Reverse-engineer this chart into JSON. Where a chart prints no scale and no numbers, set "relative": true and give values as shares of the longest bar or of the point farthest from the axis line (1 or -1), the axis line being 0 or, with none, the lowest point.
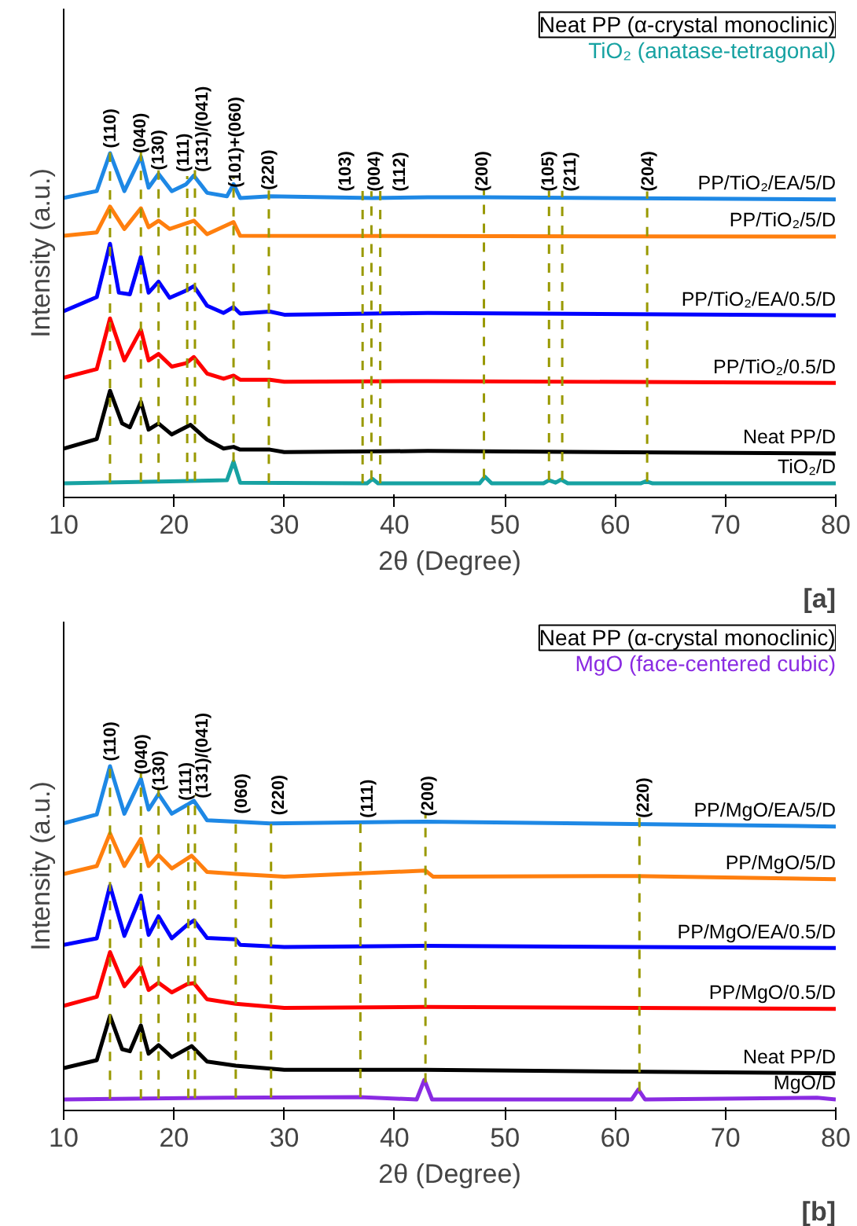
{
  "chart_data": [
    {
      "type": "line",
      "relative": true,
      "xlabel": "2θ (Degree)",
      "ylabel": "Intensity (a.u.)",
      "xlim": [
        10,
        80
      ],
      "xticks": [
        10,
        20,
        30,
        40,
        50,
        60,
        70,
        80
      ],
      "grid": false,
      "marker": "none",
      "line_style": "solid",
      "annotations": [
        "Neat PP (α-crystal monoclinic)",
        "TiO₂ (anatase-tetragonal)",
        {
          "text": "(110)",
          "x": 14.3,
          "y": 1.015
        },
        {
          "text": "(040)",
          "x": 17.0,
          "y": 1.0
        },
        {
          "text": "(130)",
          "x": 18.6,
          "y": 0.951
        },
        {
          "text": "(111)",
          "x": 20.9,
          "y": 0.946
        },
        {
          "text": "(131)/(041)",
          "x": 22.6,
          "y": 0.946
        },
        {
          "text": "(101)+(060)",
          "x": 25.6,
          "y": 0.9
        },
        {
          "text": "(220)",
          "x": 28.6,
          "y": 0.893
        },
        {
          "text": "(103)",
          "x": 35.6,
          "y": 0.889
        },
        {
          "text": "(004)",
          "x": 38.2,
          "y": 0.889
        },
        {
          "text": "(112)",
          "x": 40.5,
          "y": 0.889
        },
        {
          "text": "(200)",
          "x": 48.0,
          "y": 0.889
        },
        {
          "text": "(105)",
          "x": 54.0,
          "y": 0.889
        },
        {
          "text": "(211)",
          "x": 56.0,
          "y": 0.889
        },
        {
          "text": "(204)",
          "x": 63.0,
          "y": 0.889
        },
        "[a]"
      ],
      "ref_lines": [
        {
          "axis": "x",
          "value": 14.2,
          "color": "#999900",
          "line_style": "dashed"
        },
        {
          "axis": "x",
          "value": 17.0,
          "color": "#999900",
          "line_style": "dashed"
        },
        {
          "axis": "x",
          "value": 18.6,
          "color": "#999900",
          "line_style": "dashed"
        },
        {
          "axis": "x",
          "value": 21.2,
          "color": "#999900",
          "line_style": "dashed"
        },
        {
          "axis": "x",
          "value": 21.9,
          "color": "#999900",
          "line_style": "dashed"
        },
        {
          "axis": "x",
          "value": 25.4,
          "color": "#999900",
          "line_style": "dashed"
        },
        {
          "axis": "x",
          "value": 28.6,
          "color": "#999900",
          "line_style": "dashed"
        },
        {
          "axis": "x",
          "value": 37.1,
          "color": "#999900",
          "line_style": "dashed"
        },
        {
          "axis": "x",
          "value": 37.9,
          "color": "#999900",
          "line_style": "dashed"
        },
        {
          "axis": "x",
          "value": 38.7,
          "color": "#999900",
          "line_style": "dashed"
        },
        {
          "axis": "x",
          "value": 48.1,
          "color": "#999900",
          "line_style": "dashed"
        },
        {
          "axis": "x",
          "value": 54.0,
          "color": "#999900",
          "line_style": "dashed"
        },
        {
          "axis": "x",
          "value": 55.2,
          "color": "#999900",
          "line_style": "dashed"
        },
        {
          "axis": "x",
          "value": 62.9,
          "color": "#999900",
          "line_style": "dashed"
        }
      ],
      "series": [
        {
          "name": "PP/TiO₂/EA/5/D",
          "color": "#1e88e5",
          "x": [
            10,
            13,
            14.2,
            15.5,
            17,
            17.7,
            18.6,
            19.8,
            21.1,
            21.8,
            23,
            24.8,
            25.4,
            26,
            28.7,
            38,
            43,
            48.2,
            80
          ],
          "values": [
            0.87,
            0.89,
            1.0,
            0.89,
            0.99,
            0.9,
            0.94,
            0.89,
            0.91,
            0.935,
            0.885,
            0.875,
            0.91,
            0.87,
            0.875,
            0.87,
            0.872,
            0.872,
            0.866
          ]
        },
        {
          "name": "PP/TiO₂/5/D",
          "color": "#ff7f0e",
          "x": [
            10,
            13,
            14.2,
            15.5,
            17,
            17.7,
            18.6,
            19.6,
            21.8,
            23,
            25.4,
            26,
            80
          ],
          "values": [
            0.76,
            0.77,
            0.845,
            0.78,
            0.84,
            0.785,
            0.804,
            0.78,
            0.804,
            0.765,
            0.8,
            0.76,
            0.758
          ]
        },
        {
          "name": "PP/TiO₂/EA/0.5/D",
          "color": "#0000ff",
          "x": [
            10,
            13,
            14.2,
            15,
            16,
            17,
            17.7,
            18.6,
            19.6,
            21.1,
            21.8,
            23,
            24.5,
            25.4,
            26,
            28.7,
            30,
            43,
            80
          ],
          "values": [
            0.541,
            0.582,
            0.737,
            0.595,
            0.59,
            0.699,
            0.595,
            0.627,
            0.58,
            0.601,
            0.614,
            0.557,
            0.536,
            0.553,
            0.534,
            0.54,
            0.531,
            0.536,
            0.529
          ]
        },
        {
          "name": "PP/TiO₂/0.5/D",
          "color": "#ff0000",
          "x": [
            10,
            13,
            14.2,
            15.5,
            17,
            17.7,
            18.6,
            19.8,
            21.1,
            21.8,
            23,
            24.5,
            25.4,
            26,
            28.7,
            30,
            43,
            80
          ],
          "values": [
            0.348,
            0.373,
            0.52,
            0.398,
            0.487,
            0.398,
            0.417,
            0.38,
            0.39,
            0.408,
            0.36,
            0.345,
            0.354,
            0.342,
            0.342,
            0.336,
            0.338,
            0.333
          ]
        },
        {
          "name": "Neat PP/D",
          "color": "#000000",
          "x": [
            10,
            13,
            14.2,
            15.3,
            16,
            17,
            17.7,
            18.6,
            19.8,
            21.5,
            23,
            24.5,
            25.4,
            26,
            28.7,
            30,
            43,
            80
          ],
          "values": [
            0.142,
            0.17,
            0.31,
            0.215,
            0.204,
            0.278,
            0.197,
            0.215,
            0.183,
            0.211,
            0.168,
            0.142,
            0.147,
            0.139,
            0.139,
            0.132,
            0.135,
            0.128
          ]
        },
        {
          "name": "TiO₂/D",
          "color": "#17a2a2",
          "x": [
            10,
            24.8,
            25.4,
            26,
            37.5,
            38,
            38.5,
            47.7,
            48.2,
            48.8,
            53.5,
            54,
            54.6,
            55.1,
            55.7,
            62.3,
            62.8,
            63.4,
            80
          ],
          "values": [
            0.041,
            0.05,
            0.104,
            0.043,
            0.041,
            0.054,
            0.041,
            0.041,
            0.06,
            0.041,
            0.041,
            0.05,
            0.043,
            0.052,
            0.041,
            0.041,
            0.047,
            0.041,
            0.041
          ]
        }
      ]
    },
    {
      "type": "line",
      "relative": true,
      "xlabel": "2θ (Degree)",
      "ylabel": "Intensity (a.u.)",
      "xlim": [
        10,
        80
      ],
      "xticks": [
        10,
        20,
        30,
        40,
        50,
        60,
        70,
        80
      ],
      "grid": false,
      "marker": "none",
      "line_style": "solid",
      "annotations": [
        "Neat PP (α-crystal monoclinic)",
        "MgO (face-centered cubic)",
        {
          "text": "(110)",
          "x": 14.25,
          "y": 1.015
        },
        {
          "text": "(040)",
          "x": 17.1,
          "y": 0.976
        },
        {
          "text": "(130)",
          "x": 18.7,
          "y": 0.928
        },
        {
          "text": "(111)",
          "x": 21.1,
          "y": 0.9
        },
        {
          "text": "(131)/(041)",
          "x": 22.6,
          "y": 0.907
        },
        {
          "text": "(060)",
          "x": 26.2,
          "y": 0.862
        },
        {
          "text": "(220)",
          "x": 29.5,
          "y": 0.858
        },
        {
          "text": "(111)",
          "x": 37.6,
          "y": 0.85
        },
        {
          "text": "(200)",
          "x": 43.1,
          "y": 0.855
        },
        {
          "text": "(220)",
          "x": 62.6,
          "y": 0.85
        },
        "[b]"
      ],
      "ref_lines": [
        {
          "axis": "x",
          "value": 14.2,
          "color": "#999900",
          "line_style": "dashed"
        },
        {
          "axis": "x",
          "value": 17.0,
          "color": "#999900",
          "line_style": "dashed"
        },
        {
          "axis": "x",
          "value": 18.6,
          "color": "#999900",
          "line_style": "dashed"
        },
        {
          "axis": "x",
          "value": 21.3,
          "color": "#999900",
          "line_style": "dashed"
        },
        {
          "axis": "x",
          "value": 21.9,
          "color": "#999900",
          "line_style": "dashed"
        },
        {
          "axis": "x",
          "value": 25.6,
          "color": "#999900",
          "line_style": "dashed"
        },
        {
          "axis": "x",
          "value": 28.8,
          "color": "#999900",
          "line_style": "dashed"
        },
        {
          "axis": "x",
          "value": 36.9,
          "color": "#999900",
          "line_style": "dashed"
        },
        {
          "axis": "x",
          "value": 42.8,
          "color": "#999900",
          "line_style": "dashed"
        },
        {
          "axis": "x",
          "value": 62.2,
          "color": "#999900",
          "line_style": "dashed"
        }
      ],
      "series": [
        {
          "name": "PP/MgO/EA/5/D",
          "color": "#1e88e5",
          "x": [
            10,
            13,
            14.2,
            15.5,
            17,
            17.7,
            18.6,
            19.8,
            21.2,
            21.8,
            23,
            25.6,
            28.7,
            42.8,
            80
          ],
          "values": [
            0.834,
            0.86,
            1.0,
            0.862,
            0.964,
            0.874,
            0.919,
            0.862,
            0.888,
            0.9,
            0.843,
            0.839,
            0.834,
            0.839,
            0.825
          ]
        },
        {
          "name": "PP/MgO/5/D",
          "color": "#ff7f0e",
          "x": [
            10,
            13,
            14.2,
            15.5,
            17,
            17.7,
            18.6,
            19.8,
            21.6,
            23,
            25.6,
            30,
            42.8,
            43.5,
            62,
            80
          ],
          "values": [
            0.687,
            0.71,
            0.805,
            0.71,
            0.789,
            0.71,
            0.742,
            0.703,
            0.74,
            0.693,
            0.687,
            0.679,
            0.697,
            0.679,
            0.681,
            0.672
          ]
        },
        {
          "name": "PP/MgO/EA/0.5/D",
          "color": "#0000ff",
          "x": [
            10,
            13,
            14.2,
            15.5,
            17,
            17.7,
            18.6,
            19.8,
            21.2,
            21.8,
            23,
            25.6,
            26,
            30,
            42.8,
            80
          ],
          "values": [
            0.481,
            0.5,
            0.653,
            0.507,
            0.624,
            0.51,
            0.564,
            0.5,
            0.539,
            0.552,
            0.501,
            0.497,
            0.481,
            0.475,
            0.478,
            0.472
          ]
        },
        {
          "name": "PP/MgO/0.5/D",
          "color": "#ff0000",
          "x": [
            10,
            13,
            14.2,
            15.5,
            17,
            17.7,
            18.6,
            19.8,
            21.2,
            21.8,
            23,
            25.6,
            30,
            42.8,
            80
          ],
          "values": [
            0.304,
            0.33,
            0.46,
            0.361,
            0.418,
            0.35,
            0.371,
            0.343,
            0.367,
            0.37,
            0.323,
            0.31,
            0.298,
            0.301,
            0.295
          ]
        },
        {
          "name": "Neat PP/D",
          "color": "#000000",
          "x": [
            10,
            13,
            14.2,
            15.3,
            16,
            17,
            17.7,
            18.6,
            19.8,
            21.6,
            23,
            25.6,
            30,
            42.8,
            80
          ],
          "values": [
            0.123,
            0.146,
            0.275,
            0.178,
            0.172,
            0.247,
            0.165,
            0.19,
            0.155,
            0.187,
            0.142,
            0.13,
            0.118,
            0.118,
            0.108
          ]
        },
        {
          "name": "MgO/D",
          "color": "#8a2be2",
          "x": [
            10,
            24.5,
            36.8,
            42,
            42.7,
            43.4,
            61.5,
            62.1,
            62.7,
            78.3,
            80
          ],
          "values": [
            0.032,
            0.037,
            0.039,
            0.032,
            0.089,
            0.032,
            0.032,
            0.061,
            0.032,
            0.037,
            0.032
          ]
        }
      ]
    }
  ]
}
